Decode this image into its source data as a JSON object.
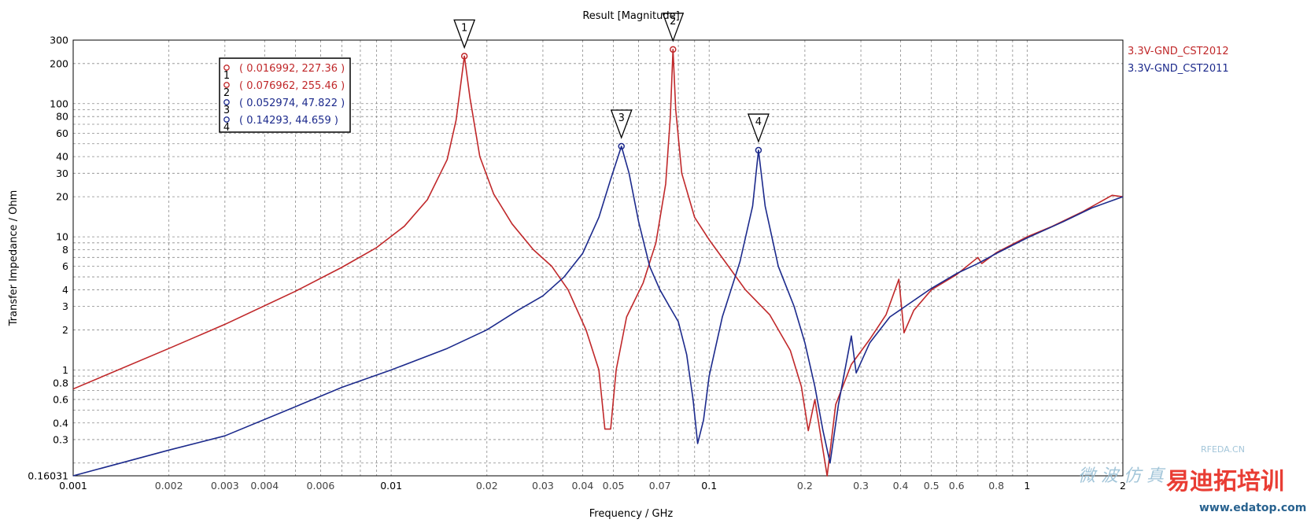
{
  "chart_data": {
    "type": "line",
    "title": "Result [Magnitude]",
    "xlabel": "Frequency / GHz",
    "ylabel": "Transfer Impedance / Ohm",
    "xscale": "log",
    "yscale": "log",
    "xlim": [
      0.001,
      2
    ],
    "ylim": [
      0.16031,
      300
    ],
    "grid": true,
    "legend_position": "right",
    "x_ticks_major": [
      "0.001",
      "0.01",
      "0.1",
      "1",
      "2"
    ],
    "x_ticks_minor": [
      "0.002",
      "0.003",
      "0.004",
      "0.006",
      "0.02",
      "0.03",
      "0.04",
      "0.05",
      "0.07",
      "0.2",
      "0.3",
      "0.4",
      "0.5",
      "0.6",
      "0.8"
    ],
    "y_ticks": [
      "0.16031",
      "0.3",
      "0.4",
      "0.6",
      "0.8",
      "1",
      "2",
      "3",
      "4",
      "6",
      "8",
      "10",
      "20",
      "30",
      "40",
      "60",
      "80",
      "100",
      "200",
      "300"
    ],
    "series": [
      {
        "name": "3.3V-GND_CST2012",
        "color": "#c0282a",
        "points": [
          [
            0.001,
            0.72
          ],
          [
            0.002,
            1.45
          ],
          [
            0.003,
            2.2
          ],
          [
            0.005,
            3.9
          ],
          [
            0.007,
            5.9
          ],
          [
            0.009,
            8.3
          ],
          [
            0.011,
            12.0
          ],
          [
            0.013,
            19.0
          ],
          [
            0.015,
            38.0
          ],
          [
            0.016,
            75.0
          ],
          [
            0.016992,
            227.36
          ],
          [
            0.0177,
            110.0
          ],
          [
            0.019,
            40.0
          ],
          [
            0.021,
            21.0
          ],
          [
            0.024,
            12.5
          ],
          [
            0.028,
            8.0
          ],
          [
            0.032,
            6.0
          ],
          [
            0.036,
            4.0
          ],
          [
            0.041,
            2.0
          ],
          [
            0.045,
            1.0
          ],
          [
            0.047,
            0.36
          ],
          [
            0.049,
            0.36
          ],
          [
            0.051,
            1.0
          ],
          [
            0.055,
            2.5
          ],
          [
            0.062,
            4.5
          ],
          [
            0.068,
            9.0
          ],
          [
            0.073,
            25.0
          ],
          [
            0.0755,
            80.0
          ],
          [
            0.076962,
            255.46
          ],
          [
            0.0785,
            90.0
          ],
          [
            0.082,
            30.0
          ],
          [
            0.09,
            14.0
          ],
          [
            0.1,
            9.5
          ],
          [
            0.115,
            6.0
          ],
          [
            0.13,
            4.0
          ],
          [
            0.155,
            2.6
          ],
          [
            0.18,
            1.4
          ],
          [
            0.195,
            0.75
          ],
          [
            0.205,
            0.35
          ],
          [
            0.215,
            0.6
          ],
          [
            0.235,
            0.16
          ],
          [
            0.25,
            0.55
          ],
          [
            0.28,
            1.1
          ],
          [
            0.32,
            1.7
          ],
          [
            0.36,
            2.6
          ],
          [
            0.395,
            4.8
          ],
          [
            0.41,
            1.9
          ],
          [
            0.44,
            2.8
          ],
          [
            0.5,
            4.0
          ],
          [
            0.6,
            5.2
          ],
          [
            0.7,
            7.0
          ],
          [
            0.72,
            6.3
          ],
          [
            0.8,
            7.6
          ],
          [
            1.0,
            10.0
          ],
          [
            1.2,
            12.0
          ],
          [
            1.5,
            15.5
          ],
          [
            1.85,
            20.5
          ],
          [
            2.0,
            20.0
          ]
        ]
      },
      {
        "name": "3.3V-GND_CST2011",
        "color": "#1c2a8c",
        "points": [
          [
            0.001,
            0.16031
          ],
          [
            0.002,
            0.25
          ],
          [
            0.003,
            0.32
          ],
          [
            0.005,
            0.53
          ],
          [
            0.007,
            0.74
          ],
          [
            0.01,
            1.0
          ],
          [
            0.015,
            1.45
          ],
          [
            0.02,
            2.0
          ],
          [
            0.025,
            2.8
          ],
          [
            0.03,
            3.6
          ],
          [
            0.035,
            5.0
          ],
          [
            0.04,
            7.5
          ],
          [
            0.045,
            14.0
          ],
          [
            0.049,
            27.0
          ],
          [
            0.052974,
            47.822
          ],
          [
            0.056,
            30.0
          ],
          [
            0.06,
            13.0
          ],
          [
            0.065,
            6.0
          ],
          [
            0.07,
            4.0
          ],
          [
            0.075,
            3.0
          ],
          [
            0.08,
            2.3
          ],
          [
            0.085,
            1.3
          ],
          [
            0.089,
            0.6
          ],
          [
            0.092,
            0.28
          ],
          [
            0.096,
            0.42
          ],
          [
            0.1,
            0.9
          ],
          [
            0.11,
            2.5
          ],
          [
            0.125,
            6.5
          ],
          [
            0.137,
            17.0
          ],
          [
            0.14293,
            44.659
          ],
          [
            0.15,
            17.0
          ],
          [
            0.165,
            6.0
          ],
          [
            0.185,
            3.0
          ],
          [
            0.2,
            1.6
          ],
          [
            0.215,
            0.75
          ],
          [
            0.228,
            0.35
          ],
          [
            0.24,
            0.2
          ],
          [
            0.255,
            0.55
          ],
          [
            0.28,
            1.8
          ],
          [
            0.29,
            0.95
          ],
          [
            0.32,
            1.6
          ],
          [
            0.37,
            2.5
          ],
          [
            0.43,
            3.2
          ],
          [
            0.5,
            4.1
          ],
          [
            0.6,
            5.3
          ],
          [
            0.7,
            6.3
          ],
          [
            0.8,
            7.5
          ],
          [
            1.0,
            9.8
          ],
          [
            1.3,
            13.0
          ],
          [
            1.6,
            16.5
          ],
          [
            2.0,
            20.0
          ]
        ]
      }
    ],
    "markers": [
      {
        "id": "1",
        "series": 0,
        "x": 0.016992,
        "y": 227.36,
        "label": "( 0.016992, 227.36 )"
      },
      {
        "id": "2",
        "series": 0,
        "x": 0.076962,
        "y": 255.46,
        "label": "( 0.076962, 255.46 )"
      },
      {
        "id": "3",
        "series": 1,
        "x": 0.052974,
        "y": 47.822,
        "label": "( 0.052974, 47.822 )"
      },
      {
        "id": "4",
        "series": 1,
        "x": 0.14293,
        "y": 44.659,
        "label": "( 0.14293, 44.659 )"
      }
    ]
  },
  "watermark": {
    "brand": "易迪拓培训",
    "site": "www.edatop.com",
    "rfeda": "RFEDA.CN",
    "cn_text": "微 波 仿 真",
    "colors": {
      "brand": "#e8332a",
      "faint": "#9fc3d8"
    }
  }
}
